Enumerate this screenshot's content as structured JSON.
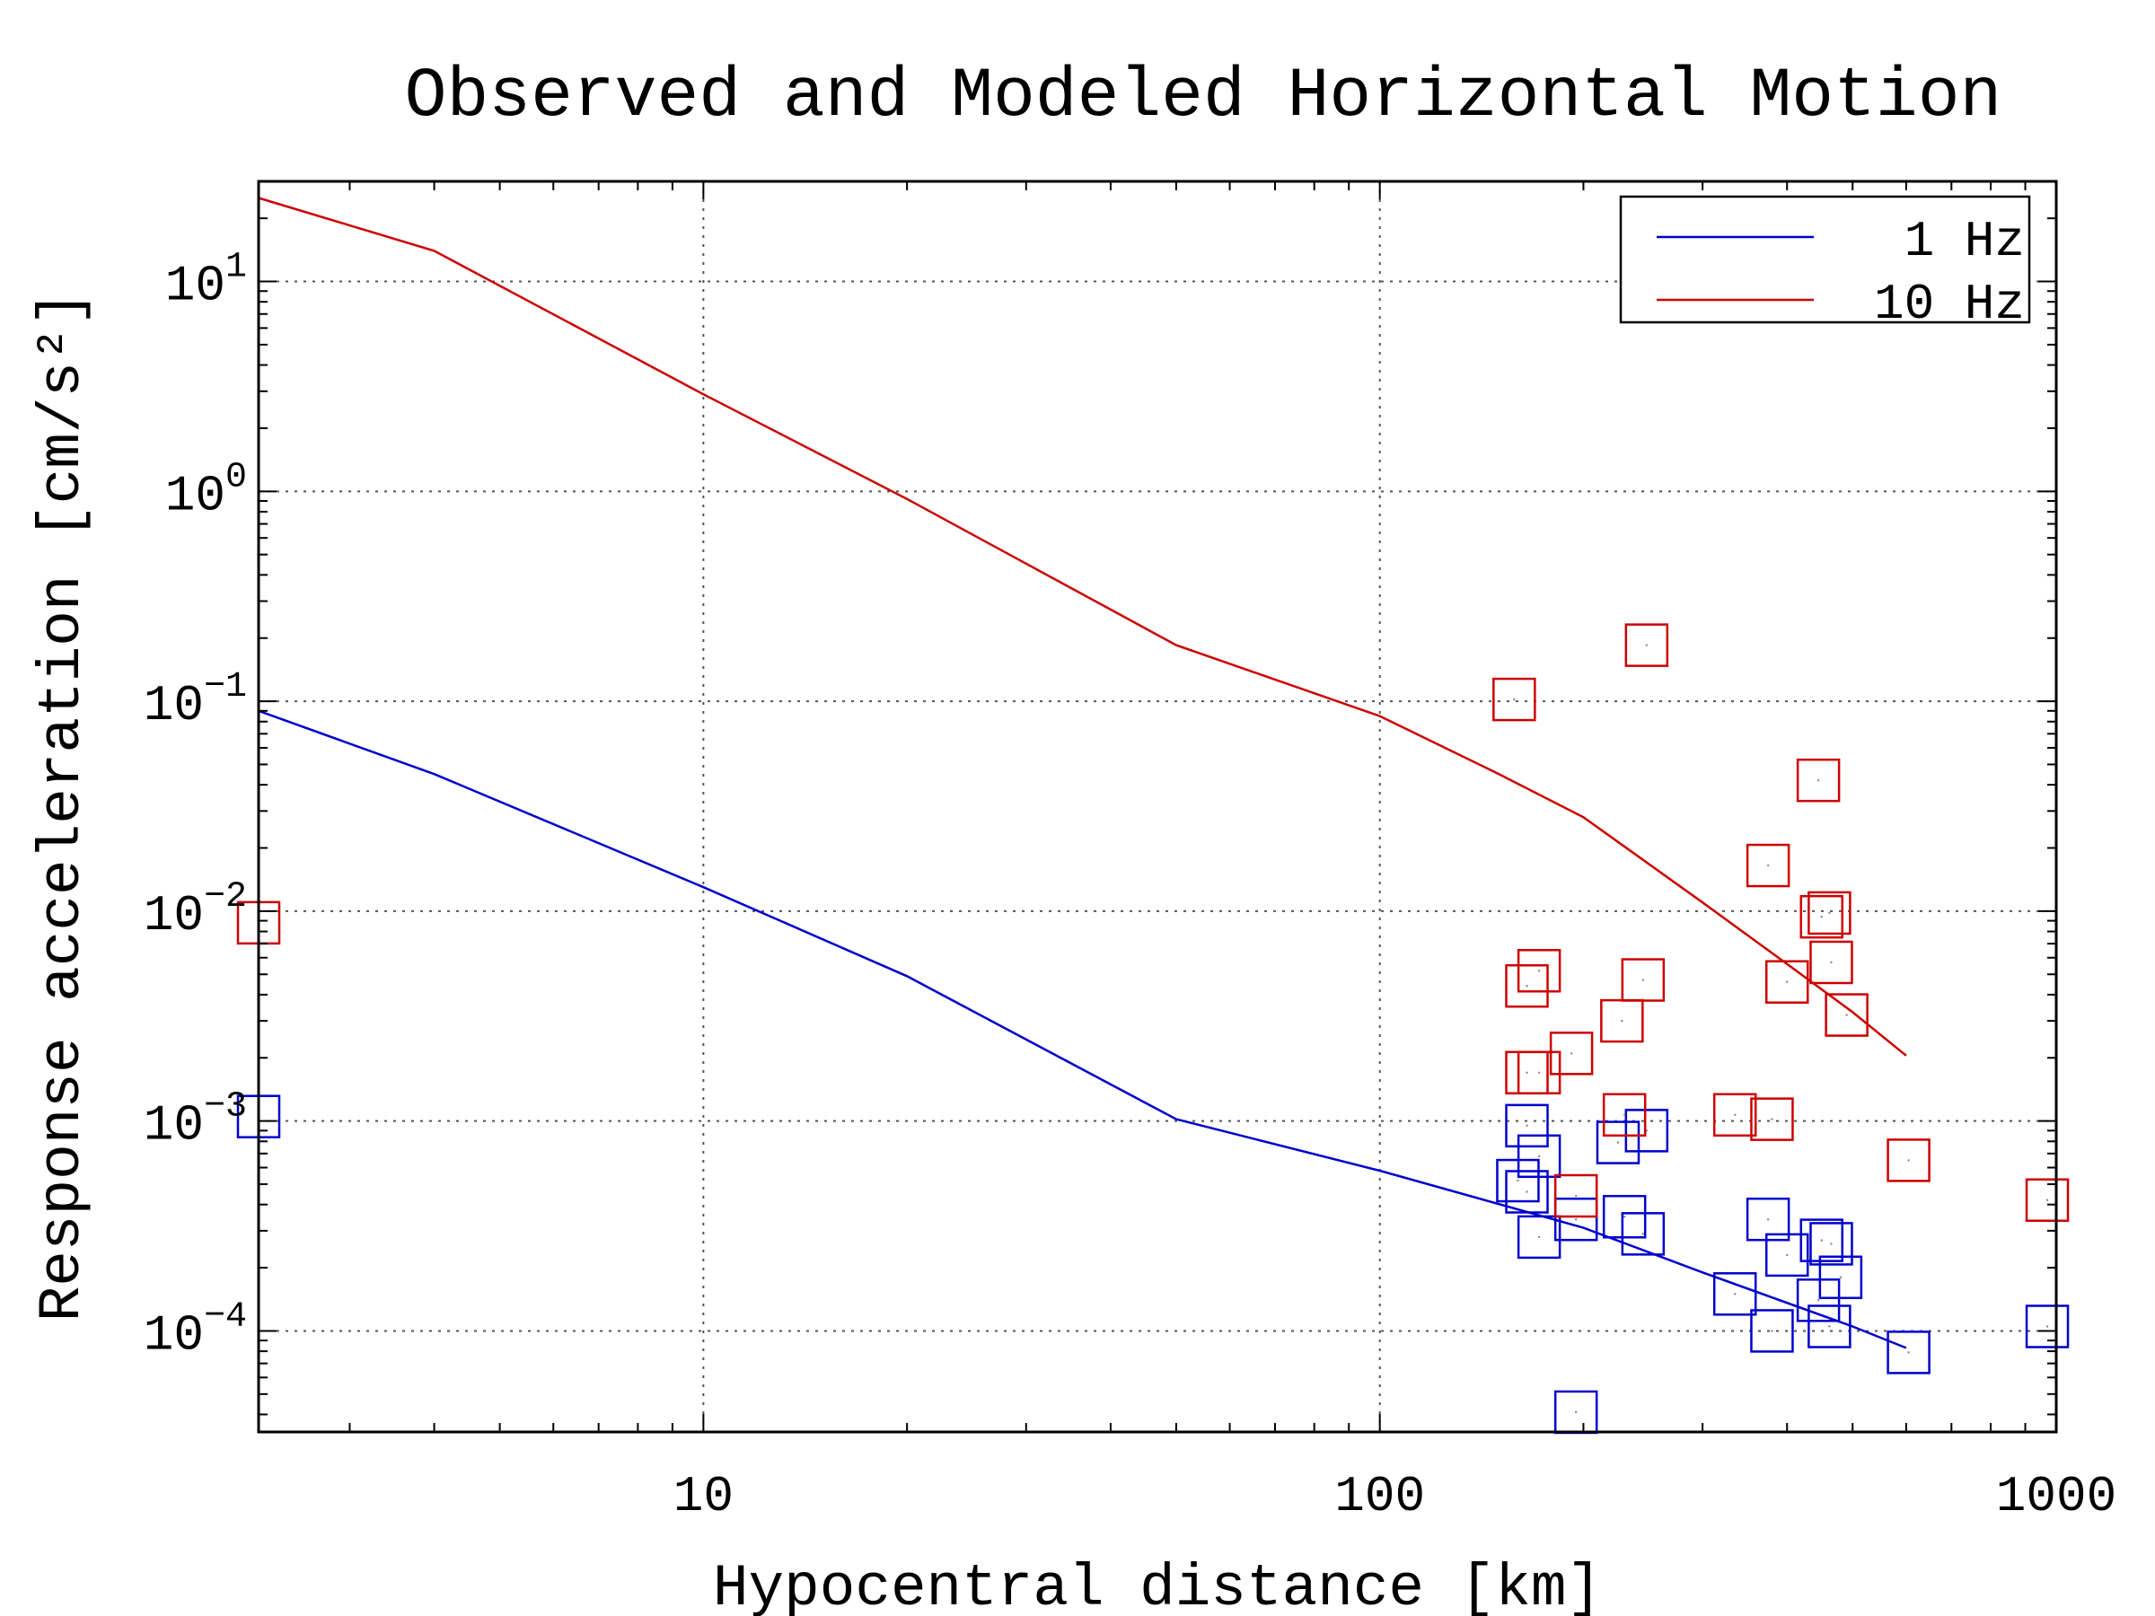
{
  "chart_data": {
    "type": "scatter",
    "title": "Observed and Modeled Horizontal Motion",
    "xlabel": "Hypocentral distance [km]",
    "ylabel": "Response acceleration [cm/s²]",
    "xscale": "log",
    "yscale": "log",
    "xlim": [
      2.2,
      1000
    ],
    "ylim": [
      3.3e-05,
      30
    ],
    "grid": true,
    "legend_position": "top-right",
    "x_ticks": [
      {
        "value": 10,
        "label": "10"
      },
      {
        "value": 100,
        "label": "100"
      },
      {
        "value": 1000,
        "label": "1000"
      }
    ],
    "y_ticks": [
      {
        "value": 10,
        "base": "10",
        "exp": "1"
      },
      {
        "value": 1,
        "base": "10",
        "exp": "0"
      },
      {
        "value": 0.1,
        "base": "10",
        "exp": "−1"
      },
      {
        "value": 0.01,
        "base": "10",
        "exp": "−2"
      },
      {
        "value": 0.001,
        "base": "10",
        "exp": "−3"
      },
      {
        "value": 0.0001,
        "base": "10",
        "exp": "−4"
      }
    ],
    "series": [
      {
        "name": "1 Hz",
        "color": "#0000cc",
        "line": [
          [
            2.2,
            0.09
          ],
          [
            4,
            0.045
          ],
          [
            10,
            0.013
          ],
          [
            20,
            0.0049
          ],
          [
            50,
            0.00102
          ],
          [
            100,
            0.00058
          ],
          [
            200,
            0.00031
          ],
          [
            300,
            0.00019
          ],
          [
            500,
            0.000105
          ],
          [
            600,
            8.3e-05
          ]
        ],
        "points": [
          [
            2.2,
            0.00105
          ],
          [
            160,
            0.00052
          ],
          [
            165,
            0.00046
          ],
          [
            165,
            0.00095
          ],
          [
            172,
            0.00068
          ],
          [
            172,
            0.00028
          ],
          [
            195,
            0.00034
          ],
          [
            195,
            4.1e-05
          ],
          [
            225,
            0.00079
          ],
          [
            230,
            0.00035
          ],
          [
            245,
            0.00029
          ],
          [
            248,
            0.0009
          ],
          [
            335,
            0.00015
          ],
          [
            375,
            0.00034
          ],
          [
            380,
            0.0001
          ],
          [
            400,
            0.00023
          ],
          [
            445,
            0.00014
          ],
          [
            450,
            0.00027
          ],
          [
            462,
            0.000105
          ],
          [
            465,
            0.00026
          ],
          [
            480,
            0.00018
          ],
          [
            605,
            7.9e-05
          ],
          [
            970,
            0.000105
          ]
        ]
      },
      {
        "name": "10 Hz",
        "color": "#cc0000",
        "line": [
          [
            2.2,
            25
          ],
          [
            4,
            14
          ],
          [
            10,
            2.9
          ],
          [
            20,
            0.92
          ],
          [
            50,
            0.185
          ],
          [
            100,
            0.085
          ],
          [
            150,
            0.045
          ],
          [
            200,
            0.028
          ],
          [
            300,
            0.011
          ],
          [
            400,
            0.0056
          ],
          [
            500,
            0.0033
          ],
          [
            600,
            0.00205
          ]
        ],
        "points": [
          [
            2.2,
            0.0088
          ],
          [
            158,
            0.102
          ],
          [
            165,
            0.0044
          ],
          [
            165,
            0.0017
          ],
          [
            172,
            0.0052
          ],
          [
            172,
            0.0017
          ],
          [
            192,
            0.0021
          ],
          [
            195,
            0.00044
          ],
          [
            228,
            0.003
          ],
          [
            230,
            0.00107
          ],
          [
            245,
            0.0047
          ],
          [
            248,
            0.185
          ],
          [
            335,
            0.00107
          ],
          [
            375,
            0.0165
          ],
          [
            380,
            0.00102
          ],
          [
            400,
            0.0046
          ],
          [
            445,
            0.042
          ],
          [
            450,
            0.0094
          ],
          [
            462,
            0.0098
          ],
          [
            465,
            0.0057
          ],
          [
            490,
            0.0032
          ],
          [
            605,
            0.00065
          ],
          [
            970,
            0.00042
          ]
        ]
      }
    ]
  }
}
